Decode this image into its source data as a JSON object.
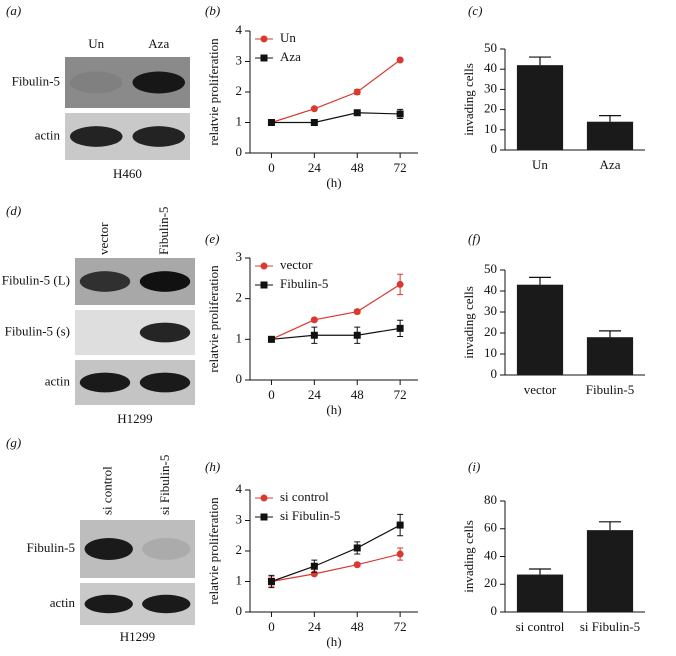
{
  "blots": [
    {
      "label": "(a)",
      "columns": [
        "Un",
        "Aza"
      ],
      "rows": [
        "Fibulin-5",
        "actin"
      ],
      "cell_line": "H460"
    },
    {
      "label": "(d)",
      "columns": [
        "vector",
        "Fibulin-5"
      ],
      "rows": [
        "Fibulin-5 (L)",
        "Fibulin-5 (s)",
        "actin"
      ],
      "cell_line": "H1299"
    },
    {
      "label": "(g)",
      "columns": [
        "si control",
        "si Fibulin-5"
      ],
      "rows": [
        "Fibulin-5",
        "actin"
      ],
      "cell_line": "H1299"
    }
  ],
  "chart_data": [
    {
      "type": "line",
      "label": "(b)",
      "ylabel": "relatvie proliferation",
      "xlabel": "(h)",
      "x": [
        0,
        24,
        48,
        72
      ],
      "xlim": [
        -12,
        82
      ],
      "xticks": [
        0,
        24,
        48,
        72
      ],
      "ylim": [
        0,
        4
      ],
      "yticks": [
        0,
        1,
        2,
        3,
        4
      ],
      "series": [
        {
          "name": "Un",
          "color": "#d9392f",
          "marker": "circle",
          "values": [
            1,
            1.45,
            2.0,
            3.05
          ],
          "errors": [
            0.03,
            0.05,
            0.08,
            0.04
          ]
        },
        {
          "name": "Aza",
          "color": "#111111",
          "marker": "square",
          "values": [
            1,
            1.0,
            1.32,
            1.28
          ],
          "errors": [
            0.03,
            0.03,
            0.05,
            0.15
          ]
        }
      ]
    },
    {
      "type": "bar",
      "label": "(c)",
      "ylabel": "invading cells",
      "categories": [
        "Un",
        "Aza"
      ],
      "values": [
        42,
        14
      ],
      "errors": [
        4,
        3
      ],
      "color": "#1a1a1a",
      "ylim": [
        0,
        50
      ],
      "yticks": [
        0,
        10,
        20,
        30,
        40,
        50
      ]
    },
    {
      "type": "line",
      "label": "(e)",
      "ylabel": "relatvie proliferation",
      "xlabel": "(h)",
      "x": [
        0,
        24,
        48,
        72
      ],
      "xlim": [
        -12,
        82
      ],
      "xticks": [
        0,
        24,
        48,
        72
      ],
      "ylim": [
        0,
        3
      ],
      "yticks": [
        0,
        1,
        2,
        3
      ],
      "series": [
        {
          "name": "vector",
          "color": "#d9392f",
          "marker": "circle",
          "values": [
            1,
            1.48,
            1.68,
            2.35
          ],
          "errors": [
            0.03,
            0.04,
            0.05,
            0.25
          ]
        },
        {
          "name": "Fibulin-5",
          "color": "#111111",
          "marker": "square",
          "values": [
            1,
            1.1,
            1.1,
            1.27
          ],
          "errors": [
            0.03,
            0.2,
            0.2,
            0.2
          ]
        }
      ]
    },
    {
      "type": "bar",
      "label": "(f)",
      "ylabel": "invading cells",
      "categories": [
        "vector",
        "Fibulin-5"
      ],
      "values": [
        43,
        18
      ],
      "errors": [
        3.5,
        3
      ],
      "color": "#1a1a1a",
      "ylim": [
        0,
        50
      ],
      "yticks": [
        0,
        10,
        20,
        30,
        40,
        50
      ]
    },
    {
      "type": "line",
      "label": "(h)",
      "ylabel": "relatvie proliferation",
      "xlabel": "(h)",
      "x": [
        0,
        24,
        48,
        72
      ],
      "xlim": [
        -12,
        82
      ],
      "xticks": [
        0,
        24,
        48,
        72
      ],
      "ylim": [
        0,
        4
      ],
      "yticks": [
        0,
        1,
        2,
        3,
        4
      ],
      "series": [
        {
          "name": "si control",
          "color": "#d9392f",
          "marker": "circle",
          "values": [
            1,
            1.25,
            1.55,
            1.9
          ],
          "errors": [
            0.15,
            0.05,
            0.05,
            0.2
          ]
        },
        {
          "name": "si Fibulin-5",
          "color": "#111111",
          "marker": "square",
          "values": [
            1,
            1.5,
            2.1,
            2.85
          ],
          "errors": [
            0.2,
            0.2,
            0.2,
            0.35
          ]
        }
      ]
    },
    {
      "type": "bar",
      "label": "(i)",
      "ylabel": "invading cells",
      "categories": [
        "si control",
        "si Fibulin-5"
      ],
      "values": [
        27,
        59
      ],
      "errors": [
        4,
        6
      ],
      "color": "#1a1a1a",
      "ylim": [
        0,
        80
      ],
      "yticks": [
        0,
        20,
        40,
        60,
        80
      ]
    }
  ]
}
